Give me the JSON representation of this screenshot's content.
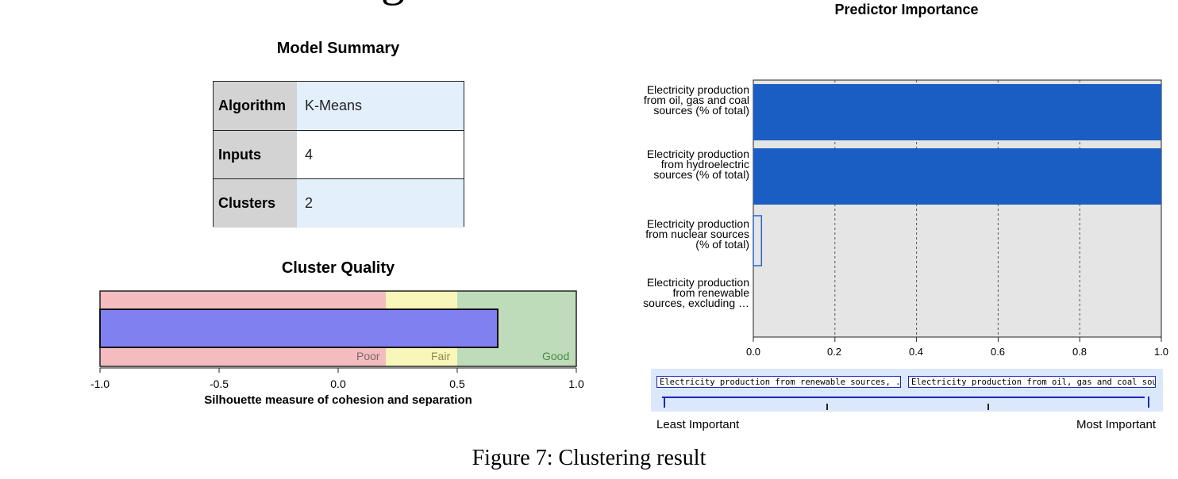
{
  "top_glyph": "g",
  "model_summary": {
    "title": "Model Summary",
    "rows": [
      {
        "key": "Algorithm",
        "value": "K-Means"
      },
      {
        "key": "Inputs",
        "value": "4"
      },
      {
        "key": "Clusters",
        "value": "2"
      }
    ]
  },
  "cluster_quality": {
    "title": "Cluster Quality",
    "bands": [
      "Poor",
      "Fair",
      "Good"
    ],
    "xlabel": "Silhouette measure of cohesion and separation",
    "ticks": [
      "-1.0",
      "-0.5",
      "0.0",
      "0.5",
      "1.0"
    ]
  },
  "predictor_importance": {
    "title": "Predictor Importance",
    "predictors": [
      "Electricity production from oil, gas and coal sources (% of total)",
      "Electricity production from hydroelectric sources (% of total)",
      "Electricity production from nuclear sources (% of total)",
      "Electricity production from renewable sources, excluding …"
    ],
    "ticks": [
      "0.0",
      "0.2",
      "0.4",
      "0.6",
      "0.8",
      "1.0"
    ],
    "legend_low": "Electricity production from renewable sources, ...",
    "legend_high": "Electricity production from oil, gas and coal sour...",
    "least_label": "Least Important",
    "most_label": "Most Important"
  },
  "figure_caption": "Figure 7:  Clustering result",
  "colors": {
    "poor": "#f4bcbe",
    "fair": "#f8f6b8",
    "good": "#bfdcba",
    "quality_bar": "#8080f0",
    "importance_bar": "#1a5ec4",
    "plot_bg": "#e5e5e5",
    "table_key_bg": "#d3d3d3",
    "table_val_bg": "#e3f0fc",
    "legend_bg": "#dbe8fb",
    "legend_border": "#1b2ab6"
  },
  "chart_data": [
    {
      "type": "bar",
      "title": "Cluster Quality",
      "orientation": "horizontal",
      "xlabel": "Silhouette measure of cohesion and separation",
      "xlim": [
        -1.0,
        1.0
      ],
      "bands": [
        {
          "label": "Poor",
          "from": -1.0,
          "to": 0.2
        },
        {
          "label": "Fair",
          "from": 0.2,
          "to": 0.5
        },
        {
          "label": "Good",
          "from": 0.5,
          "to": 1.0
        }
      ],
      "values": [
        0.67
      ]
    },
    {
      "type": "bar",
      "title": "Predictor Importance",
      "orientation": "horizontal",
      "categories": [
        "Electricity production from oil, gas and coal sources (% of total)",
        "Electricity production from hydroelectric sources (% of total)",
        "Electricity production from nuclear sources (% of total)",
        "Electricity production from renewable sources, excluding …"
      ],
      "values": [
        1.0,
        1.0,
        0.02,
        0.0
      ],
      "xlim": [
        0.0,
        1.0
      ],
      "grid": true
    }
  ]
}
